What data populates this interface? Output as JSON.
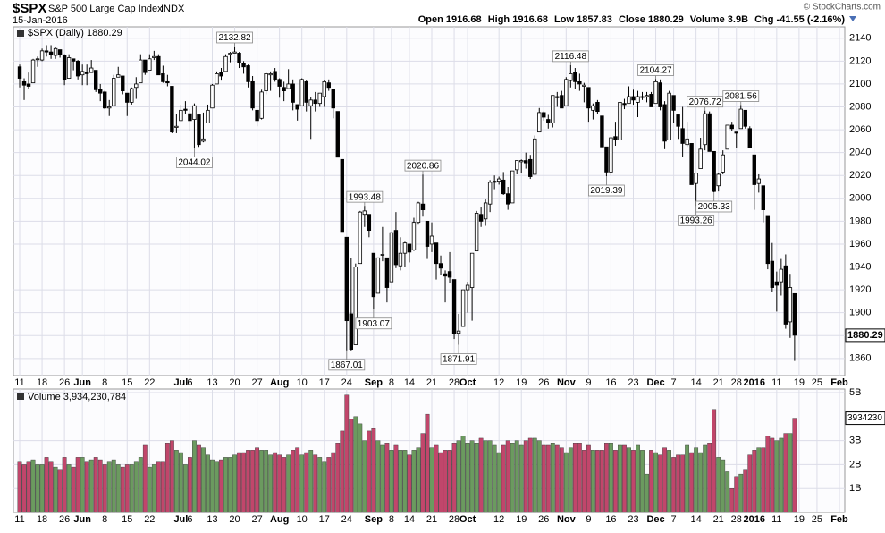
{
  "header": {
    "symbol": "$SPX",
    "name": "S&P 500 Large Cap Index",
    "exchange": "INDX",
    "date": "15-Jan-2016",
    "copyright": "© StockCharts.com",
    "quote_labels": [
      "Open",
      "High",
      "Low",
      "Close",
      "Volume",
      "Chg"
    ],
    "volume_text": "3.9B",
    "change": -41.55,
    "change_pct": "(-2.16%)",
    "legend": "$SPX (Daily)",
    "volume_legend_value": "3,934,230,784",
    "volume_tag": "3934230"
  },
  "chart_data": {
    "type": "candlestick",
    "candle_color": "#000000",
    "up_fill": "#ffffff",
    "volume_up_color": "#6b9a5f",
    "volume_down_color": "#c1466b",
    "xlim": [
      -1.4,
      184.2
    ],
    "ylim": [
      1845,
      2150
    ],
    "yticks": [
      1860,
      1880,
      1900,
      1920,
      1940,
      1960,
      1980,
      2000,
      2020,
      2040,
      2060,
      2080,
      2100,
      2120,
      2140
    ],
    "volume_ylim": [
      0,
      5.15
    ],
    "volume_yticks": [
      {
        "value": 1,
        "label": "1B"
      },
      {
        "value": 2,
        "label": "2B"
      },
      {
        "value": 3,
        "label": "3B"
      },
      {
        "value": 5,
        "label": "5B"
      }
    ],
    "grid": true,
    "xticks": [
      {
        "value": 0,
        "label": "11"
      },
      {
        "value": 5,
        "label": "18"
      },
      {
        "value": 10,
        "label": "26"
      },
      {
        "value": 14,
        "label": "Jun"
      },
      {
        "value": 19,
        "label": "8"
      },
      {
        "value": 24,
        "label": "15"
      },
      {
        "value": 29,
        "label": "22"
      },
      {
        "value": 36,
        "label": "Jul"
      },
      {
        "value": 38,
        "label": "6"
      },
      {
        "value": 43,
        "label": "13"
      },
      {
        "value": 48,
        "label": "20"
      },
      {
        "value": 53,
        "label": "27"
      },
      {
        "value": 58,
        "label": "Aug"
      },
      {
        "value": 63,
        "label": "10"
      },
      {
        "value": 68,
        "label": "17"
      },
      {
        "value": 73,
        "label": "24"
      },
      {
        "value": 79,
        "label": "Sep"
      },
      {
        "value": 83,
        "label": "8"
      },
      {
        "value": 87,
        "label": "14"
      },
      {
        "value": 92,
        "label": "21"
      },
      {
        "value": 97,
        "label": "28"
      },
      {
        "value": 100,
        "label": "Oct"
      },
      {
        "value": 107,
        "label": "12"
      },
      {
        "value": 112,
        "label": "19"
      },
      {
        "value": 117,
        "label": "26"
      },
      {
        "value": 122,
        "label": "Nov"
      },
      {
        "value": 127,
        "label": "9"
      },
      {
        "value": 132,
        "label": "16"
      },
      {
        "value": 137,
        "label": "23"
      },
      {
        "value": 142,
        "label": "Dec"
      },
      {
        "value": 146,
        "label": "7"
      },
      {
        "value": 151,
        "label": "14"
      },
      {
        "value": 156,
        "label": "21"
      },
      {
        "value": 160,
        "label": "28"
      },
      {
        "value": 164,
        "label": "2016"
      },
      {
        "value": 169,
        "label": "11"
      },
      {
        "value": 174,
        "label": "19"
      },
      {
        "value": 178,
        "label": "25"
      },
      {
        "value": 183,
        "label": "Feb"
      }
    ],
    "ohlc": [
      [
        2115,
        2117,
        2097,
        2105
      ],
      [
        2102,
        2105,
        2086,
        2099
      ],
      [
        2100,
        2110,
        2096,
        2098
      ],
      [
        2101,
        2122,
        2101,
        2121
      ],
      [
        2122,
        2124,
        2115,
        2122
      ],
      [
        2121,
        2131,
        2120,
        2129
      ],
      [
        2129,
        2134,
        2124,
        2128
      ],
      [
        2128,
        2134,
        2122,
        2126
      ],
      [
        2125,
        2132,
        2122,
        2131
      ],
      [
        2130,
        2130,
        2123,
        2126
      ],
      [
        2125,
        2126,
        2099,
        2104
      ],
      [
        2105,
        2126,
        2105,
        2123
      ],
      [
        2122,
        2122,
        2112,
        2120
      ],
      [
        2120,
        2121,
        2104,
        2107
      ],
      [
        2108,
        2117,
        2099,
        2111
      ],
      [
        2110,
        2117,
        2099,
        2109
      ],
      [
        2110,
        2121,
        2110,
        2114
      ],
      [
        2112,
        2112,
        2093,
        2095
      ],
      [
        2095,
        2100,
        2085,
        2092
      ],
      [
        2093,
        2094,
        2078,
        2079
      ],
      [
        2079,
        2086,
        2072,
        2080
      ],
      [
        2081,
        2108,
        2081,
        2105
      ],
      [
        2106,
        2115,
        2106,
        2108
      ],
      [
        2107,
        2107,
        2091,
        2094
      ],
      [
        2092,
        2092,
        2072,
        2084
      ],
      [
        2084,
        2097,
        2082,
        2096
      ],
      [
        2097,
        2106,
        2087,
        2100
      ],
      [
        2101,
        2126,
        2101,
        2121
      ],
      [
        2121,
        2121,
        2108,
        2110
      ],
      [
        2112,
        2126,
        2112,
        2122
      ],
      [
        2123,
        2129,
        2121,
        2124
      ],
      [
        2124,
        2126,
        2108,
        2108
      ],
      [
        2109,
        2116,
        2101,
        2102
      ],
      [
        2102,
        2108,
        2098,
        2101
      ],
      [
        2098,
        2098,
        2057,
        2058
      ],
      [
        2062,
        2074,
        2057,
        2063
      ],
      [
        2068,
        2082,
        2068,
        2077
      ],
      [
        2078,
        2085,
        2074,
        2077
      ],
      [
        2074,
        2078,
        2059,
        2068
      ],
      [
        2069,
        2083,
        2044.02,
        2081
      ],
      [
        2073,
        2073,
        2045,
        2047
      ],
      [
        2050,
        2075,
        2049,
        2052
      ],
      [
        2066,
        2082,
        2066,
        2077
      ],
      [
        2079,
        2100,
        2079,
        2099
      ],
      [
        2100,
        2111,
        2100,
        2109
      ],
      [
        2110,
        2114,
        2103,
        2107
      ],
      [
        2111,
        2126,
        2111,
        2124
      ],
      [
        2126,
        2128,
        2119,
        2127
      ],
      [
        2127,
        2132.82,
        2127,
        2128
      ],
      [
        2127,
        2128,
        2114,
        2119
      ],
      [
        2118,
        2120,
        2109,
        2115
      ],
      [
        2116,
        2117,
        2097,
        2102
      ],
      [
        2102,
        2107,
        2077,
        2079
      ],
      [
        2077,
        2077,
        2063,
        2068
      ],
      [
        2070,
        2095,
        2069,
        2093
      ],
      [
        2094,
        2110,
        2091,
        2109
      ],
      [
        2108,
        2111,
        2094,
        2109
      ],
      [
        2111,
        2114,
        2102,
        2104
      ],
      [
        2104,
        2105,
        2088,
        2098
      ],
      [
        2097,
        2102,
        2085,
        2094
      ],
      [
        2096,
        2113,
        2096,
        2100
      ],
      [
        2100,
        2104,
        2077,
        2084
      ],
      [
        2082,
        2082,
        2068,
        2078
      ],
      [
        2081,
        2105,
        2081,
        2104
      ],
      [
        2102,
        2103,
        2076,
        2084
      ],
      [
        2081,
        2089,
        2052,
        2086
      ],
      [
        2086,
        2093,
        2076,
        2083
      ],
      [
        2083,
        2092,
        2080,
        2092
      ],
      [
        2089,
        2103,
        2080,
        2102
      ],
      [
        2101,
        2104,
        2094,
        2097
      ],
      [
        2095,
        2096,
        2070,
        2079
      ],
      [
        2076,
        2076,
        2036,
        2036
      ],
      [
        2034,
        2034,
        1971,
        1971
      ],
      [
        1966,
        1966,
        1867.01,
        1893
      ],
      [
        1899,
        1948,
        1867,
        1868
      ],
      [
        1872,
        1943,
        1872,
        1940
      ],
      [
        1943,
        1989,
        1943,
        1988
      ],
      [
        1986,
        1993.48,
        1975,
        1989
      ],
      [
        1986,
        1986,
        1966,
        1972
      ],
      [
        1952,
        1952,
        1903.07,
        1914
      ],
      [
        1917,
        1948,
        1917,
        1948
      ],
      [
        1951,
        1975,
        1945,
        1951
      ],
      [
        1948,
        1948,
        1909,
        1922
      ],
      [
        1927,
        1970,
        1927,
        1970
      ],
      [
        1972,
        1988,
        1939,
        1942
      ],
      [
        1941,
        1966,
        1937,
        1952
      ],
      [
        1952,
        1962,
        1940,
        1961
      ],
      [
        1960,
        1960,
        1944,
        1953
      ],
      [
        1955,
        1983,
        1954,
        1979
      ],
      [
        1979,
        1997,
        1977,
        1996
      ],
      [
        1995,
        2020.86,
        1984,
        1990
      ],
      [
        1980,
        1980,
        1947,
        1958
      ],
      [
        1960,
        1979,
        1953,
        1967
      ],
      [
        1961,
        1961,
        1929,
        1943
      ],
      [
        1943,
        1950,
        1933,
        1939
      ],
      [
        1934,
        1937,
        1909,
        1932
      ],
      [
        1936,
        1953,
        1926,
        1931
      ],
      [
        1929,
        1929,
        1877,
        1882
      ],
      [
        1882,
        1899,
        1871.91,
        1884
      ],
      [
        1888,
        1920,
        1888,
        1920
      ],
      [
        1920,
        1927,
        1900,
        1924
      ],
      [
        1922,
        1952,
        1893,
        1952
      ],
      [
        1954,
        1989,
        1954,
        1987
      ],
      [
        1986,
        1992,
        1975,
        1980
      ],
      [
        1982,
        1999,
        1976,
        1996
      ],
      [
        1995,
        2016,
        1988,
        2014
      ],
      [
        2014,
        2020,
        2008,
        2015
      ],
      [
        2015,
        2019,
        2012,
        2017
      ],
      [
        2016,
        2023,
        2003,
        2004
      ],
      [
        2004,
        2010,
        1990,
        1995
      ],
      [
        1996,
        2024,
        1996,
        2024
      ],
      [
        2025,
        2033,
        2021,
        2033
      ],
      [
        2032,
        2034,
        2022,
        2033
      ],
      [
        2033,
        2040,
        2026,
        2031
      ],
      [
        2034,
        2038,
        2017,
        2019
      ],
      [
        2021,
        2055,
        2021,
        2052
      ],
      [
        2058,
        2079,
        2058,
        2075
      ],
      [
        2075,
        2076,
        2068,
        2071
      ],
      [
        2069,
        2073,
        2061,
        2066
      ],
      [
        2066,
        2090,
        2062,
        2090
      ],
      [
        2088,
        2093,
        2080,
        2089
      ],
      [
        2090,
        2094,
        2079,
        2079
      ],
      [
        2081,
        2106,
        2081,
        2104
      ],
      [
        2103,
        2116.48,
        2097,
        2109
      ],
      [
        2110,
        2114,
        2096,
        2102
      ],
      [
        2102,
        2109,
        2094,
        2100
      ],
      [
        2098,
        2101,
        2084,
        2099
      ],
      [
        2097,
        2097,
        2067,
        2079
      ],
      [
        2077,
        2083,
        2069,
        2081
      ],
      [
        2084,
        2086,
        2074,
        2076
      ],
      [
        2072,
        2072,
        2045,
        2045
      ],
      [
        2045,
        2045,
        2019.39,
        2023
      ],
      [
        2023,
        2053,
        2020,
        2053
      ],
      [
        2054,
        2067,
        2046,
        2051
      ],
      [
        2051,
        2084,
        2051,
        2084
      ],
      [
        2083,
        2087,
        2078,
        2082
      ],
      [
        2083,
        2098,
        2083,
        2089
      ],
      [
        2089,
        2095,
        2082,
        2086
      ],
      [
        2084,
        2094,
        2071,
        2089
      ],
      [
        2089,
        2093,
        2086,
        2089
      ],
      [
        2089,
        2093,
        2084,
        2090
      ],
      [
        2091,
        2093,
        2080,
        2080
      ],
      [
        2083,
        2104.27,
        2083,
        2102
      ],
      [
        2101,
        2104,
        2077,
        2080
      ],
      [
        2082,
        2085,
        2043,
        2050
      ],
      [
        2051,
        2094,
        2051,
        2092
      ],
      [
        2090,
        2090,
        2066,
        2077
      ],
      [
        2073,
        2073,
        2052,
        2063
      ],
      [
        2061,
        2080,
        2036,
        2048
      ],
      [
        2047,
        2067,
        2045,
        2052
      ],
      [
        2048,
        2048,
        2012,
        2012
      ],
      [
        2013,
        2022,
        1993.26,
        2022
      ],
      [
        2026,
        2053,
        2026,
        2043
      ],
      [
        2047,
        2076.72,
        2042,
        2074
      ],
      [
        2074,
        2076,
        2041,
        2041
      ],
      [
        2041,
        2041,
        2005.33,
        2006
      ],
      [
        2011,
        2022,
        2006,
        2021
      ],
      [
        2023,
        2042,
        2021,
        2038
      ],
      [
        2043,
        2064,
        2043,
        2064
      ],
      [
        2064,
        2067,
        2059,
        2061
      ],
      [
        2058,
        2058,
        2044,
        2057
      ],
      [
        2061,
        2081.56,
        2061,
        2078
      ],
      [
        2077,
        2077,
        2061,
        2063
      ],
      [
        2061,
        2063,
        2044,
        2044
      ],
      [
        2038,
        2038,
        1990,
        2012
      ],
      [
        2013,
        2021,
        2005,
        2017
      ],
      [
        2011,
        2011,
        1979,
        1990
      ],
      [
        1985,
        1985,
        1938,
        1943
      ],
      [
        1945,
        1961,
        1918,
        1922
      ],
      [
        1927,
        1936,
        1901,
        1924
      ],
      [
        1927,
        1947,
        1915,
        1938
      ],
      [
        1941,
        1951,
        1886,
        1890
      ],
      [
        1892,
        1934,
        1878,
        1922
      ],
      [
        1916.68,
        1916.68,
        1857.83,
        1880.29
      ]
    ],
    "volume": [
      2.1,
      2.0,
      2.1,
      2.2,
      2.0,
      2.0,
      2.3,
      2.1,
      1.9,
      1.8,
      2.3,
      2.0,
      1.9,
      2.3,
      2.3,
      2.1,
      2.2,
      2.3,
      2.2,
      2.0,
      2.1,
      2.2,
      2.0,
      1.9,
      2.0,
      2.0,
      2.1,
      2.3,
      2.8,
      1.9,
      2.0,
      2.1,
      2.1,
      2.9,
      3.0,
      2.6,
      2.5,
      2.0,
      2.3,
      3.0,
      2.8,
      2.7,
      2.4,
      2.2,
      2.1,
      2.2,
      2.3,
      2.3,
      2.4,
      2.5,
      2.5,
      2.6,
      2.6,
      2.7,
      2.6,
      2.6,
      2.4,
      2.5,
      2.4,
      2.3,
      2.4,
      2.6,
      2.7,
      2.4,
      2.5,
      2.6,
      2.4,
      2.3,
      2.1,
      2.3,
      2.5,
      2.9,
      3.4,
      4.9,
      3.9,
      4.0,
      3.7,
      3.0,
      3.4,
      3.5,
      3.0,
      2.8,
      2.9,
      2.6,
      2.8,
      2.6,
      2.6,
      2.4,
      2.6,
      2.7,
      3.3,
      4.1,
      2.7,
      2.8,
      2.5,
      2.6,
      2.6,
      2.9,
      3.0,
      3.2,
      2.9,
      3.0,
      2.9,
      3.1,
      3.0,
      3.0,
      2.8,
      2.5,
      2.8,
      3.0,
      2.9,
      3.0,
      2.8,
      3.0,
      3.1,
      3.1,
      3.0,
      2.8,
      2.8,
      2.9,
      2.8,
      2.7,
      2.5,
      2.7,
      2.9,
      2.9,
      2.6,
      2.8,
      2.6,
      2.6,
      2.6,
      2.9,
      2.9,
      2.6,
      2.8,
      2.8,
      2.7,
      2.6,
      2.8,
      2.6,
      1.6,
      2.6,
      2.5,
      2.4,
      2.7,
      2.6,
      2.3,
      2.4,
      2.4,
      2.8,
      2.5,
      2.7,
      2.5,
      2.8,
      2.9,
      4.3,
      2.3,
      2.2,
      1.7,
      1.0,
      1.5,
      1.6,
      1.8,
      2.4,
      2.6,
      2.7,
      2.7,
      3.2,
      3.1,
      3.0,
      3.1,
      3.3,
      3.3,
      3.934230784
    ]
  }
}
